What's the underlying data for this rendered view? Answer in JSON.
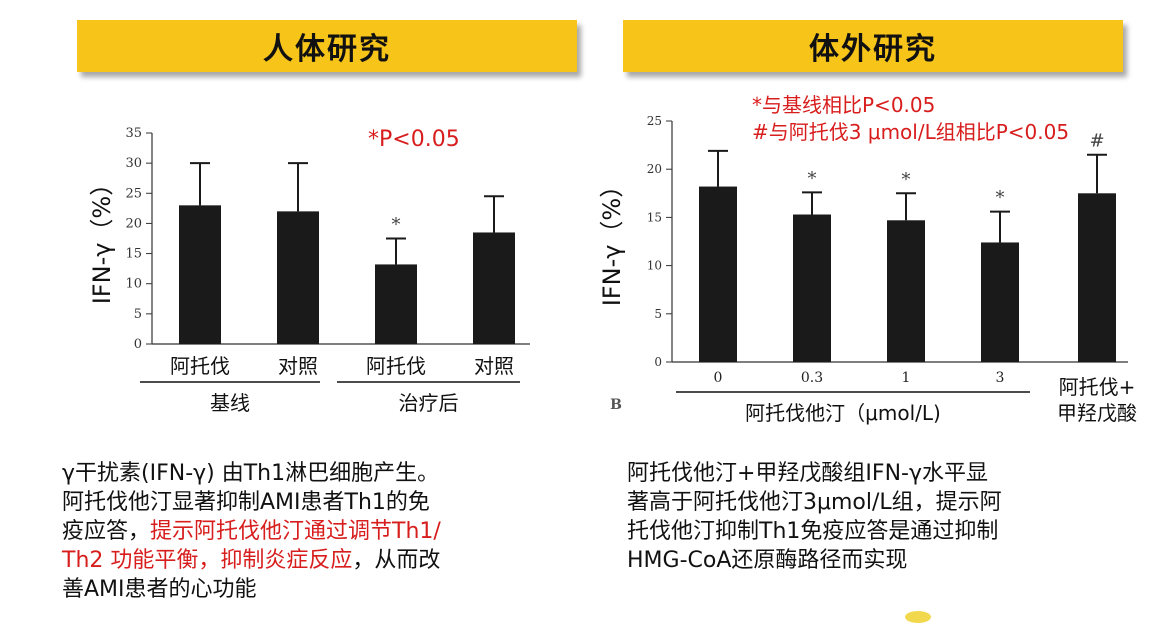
{
  "banners": {
    "left": "人体研究",
    "right": "体外研究"
  },
  "chart_data": [
    {
      "type": "bar",
      "ylabel": "IFN-γ（%）",
      "ylim": [
        0,
        35
      ],
      "yticks": [
        0,
        5,
        10,
        15,
        20,
        25,
        30,
        35
      ],
      "categories": [
        "阿托伐",
        "对照",
        "阿托伐",
        "对照"
      ],
      "groups": [
        {
          "label": "基线",
          "categories": [
            "阿托伐",
            "对照"
          ]
        },
        {
          "label": "治疗后",
          "categories": [
            "阿托伐",
            "对照"
          ]
        }
      ],
      "values": [
        23,
        22,
        13.2,
        18.5
      ],
      "errors": [
        7,
        8,
        4.3,
        6
      ],
      "markers": [
        "",
        "",
        "*",
        ""
      ],
      "annotation": "*P<0.05",
      "colors": {
        "bar": "#1a1a1a",
        "annotation": "#d81d1d"
      }
    },
    {
      "type": "bar",
      "ylabel": "IFN-γ（%）",
      "ylim": [
        0,
        25
      ],
      "yticks": [
        0,
        5,
        10,
        15,
        20,
        25
      ],
      "categories": [
        "0",
        "0.3",
        "1",
        "3",
        "阿托伐+甲羟戊酸"
      ],
      "category_lines": [
        [
          "0"
        ],
        [
          "0.3"
        ],
        [
          "1"
        ],
        [
          "3"
        ],
        [
          "阿托伐+",
          "甲羟戊酸"
        ]
      ],
      "group_label": "阿托伐他汀（μmol/L)",
      "panel_letter": "B",
      "values": [
        18.2,
        15.3,
        14.7,
        12.4,
        17.5
      ],
      "errors": [
        3.7,
        2.3,
        2.8,
        3.2,
        4
      ],
      "markers": [
        "",
        "*",
        "*",
        "*",
        "#"
      ],
      "legend": [
        "*与基线相比P<0.05",
        "#与阿托伐3 μmol/L组相比P<0.05"
      ],
      "colors": {
        "bar": "#1a1a1a",
        "annotation": "#d81d1d"
      }
    }
  ],
  "left_text": {
    "line1": "γ干扰素(IFN-γ) 由Th1淋巴细胞产生。",
    "line2": "阿托伐他汀显著抑制AMI患者Th1的免",
    "line3_black": "疫应答，",
    "line3_red": "提示阿托伐他汀通过调节Th1/",
    "line4_red": "Th2 功能平衡，抑制炎症反应",
    "line4_black": "，从而改",
    "line5": "善AMI患者的心功能"
  },
  "right_text": {
    "line1": "阿托伐他汀+甲羟戊酸组IFN-γ水平显",
    "line2": "著高于阿托伐他汀3μmol/L组，提示阿",
    "line3": "托伐他汀抑制Th1免疫应答是通过抑制",
    "line4": "HMG-CoA还原酶路径而实现"
  }
}
